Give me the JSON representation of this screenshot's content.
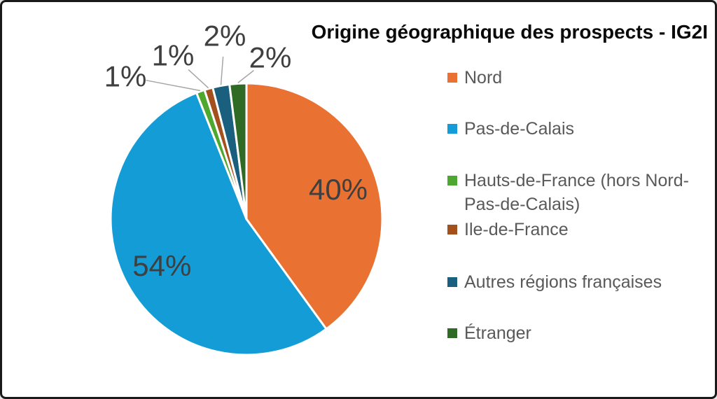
{
  "chart": {
    "title": "Origine géographique des prospects - IG2I"
  },
  "chart_data": {
    "type": "pie",
    "title": "Origine géographique des prospects - IG2I",
    "categories": [
      "Nord",
      "Pas-de-Calais",
      "Hauts-de-France (hors Nord-Pas-de-Calais)",
      "Ile-de-France",
      "Autres régions françaises",
      "Étranger"
    ],
    "values": [
      40,
      54,
      1,
      1,
      2,
      2
    ],
    "labels": [
      "40%",
      "54%",
      "1%",
      "1%",
      "2%",
      "2%"
    ],
    "colors": [
      "#E97132",
      "#149CD6",
      "#4EA72E",
      "#A4501D",
      "#1A5F7E",
      "#2F6B25"
    ],
    "start_angle_deg": 0,
    "direction": "clockwise",
    "legend_position": "right",
    "slice_border_color": "#FFFFFF",
    "data_label_color": "#3F3F3F",
    "leader_line_color": "#A6A6A6",
    "legend_text_color": "#595959"
  },
  "legend": {
    "items": [
      {
        "label": "Nord",
        "color": "#E97132"
      },
      {
        "label": "Pas-de-Calais",
        "color": "#149CD6"
      },
      {
        "label": "Hauts-de-France (hors Nord-Pas-de-Calais)",
        "color": "#4EA72E"
      },
      {
        "label": "Ile-de-France",
        "color": "#A4501D"
      },
      {
        "label": "Autres régions françaises",
        "color": "#1A5F7E"
      },
      {
        "label": "Étranger",
        "color": "#2F6B25"
      }
    ]
  }
}
